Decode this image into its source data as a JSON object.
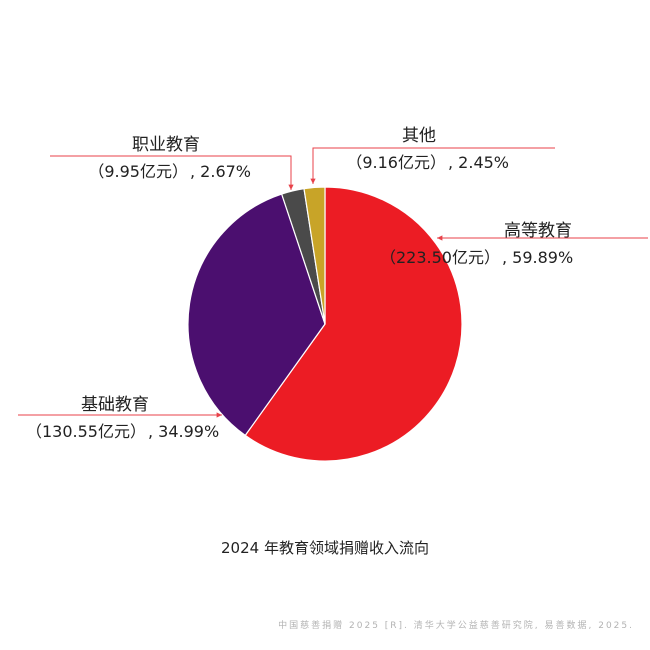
{
  "chart_data": {
    "type": "pie",
    "title": "2024 年教育领域捐赠收入流向",
    "start_angle_deg": 0,
    "direction": "clockwise",
    "slices": [
      {
        "name": "高等教育",
        "amount_label": "（223.50亿元）",
        "percent_label": ", 59.89%",
        "amount": 223.5,
        "percent": 59.89,
        "color": "#ec1c24"
      },
      {
        "name": "基础教育",
        "amount_label": "（130.55亿元）",
        "percent_label": ", 34.99%",
        "amount": 130.55,
        "percent": 34.99,
        "color": "#4b0f6f"
      },
      {
        "name": "职业教育",
        "amount_label": "（9.95亿元）",
        "percent_label": ", 2.67%",
        "amount": 9.95,
        "percent": 2.67,
        "color": "#4a4a4a"
      },
      {
        "name": "其他",
        "amount_label": "（9.16亿元）",
        "percent_label": ", 2.45%",
        "amount": 9.16,
        "percent": 2.45,
        "color": "#c8a428"
      }
    ],
    "annotation_color": "#e8424a"
  },
  "source_note": "中国慈善捐赠 2025 [R]. 清华大学公益慈善研究院, 易善数据, 2025."
}
